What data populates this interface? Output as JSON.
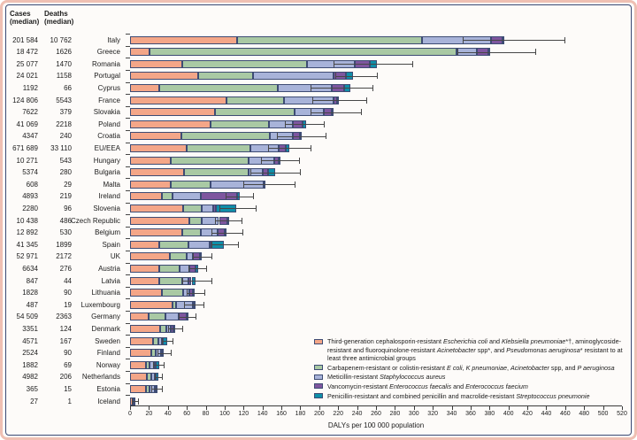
{
  "table": {
    "cases_header": "Cases\n(median)",
    "deaths_header": "Deaths\n(median)"
  },
  "axis": {
    "min": 0,
    "max": 520,
    "step": 20,
    "label": "DALYs per 100 000 population"
  },
  "legend": {
    "items": [
      {
        "key": "cephalosporin-resistant",
        "color": "#f4a688",
        "runs": [
          {
            "t": "Third-generation cephalosporin-resistant "
          },
          {
            "t": "Escherichia coli",
            "i": 1
          },
          {
            "t": " and "
          },
          {
            "t": "Klebsiella pneumoniae",
            "i": 1
          },
          {
            "t": "*†, aminoglycoside-resistant and fluoroquinolone-resistant "
          },
          {
            "t": "Acinetobacter",
            "i": 1
          },
          {
            "t": " spp*, and "
          },
          {
            "t": "Pseudomonas aeruginosa",
            "i": 1
          },
          {
            "t": "* resistant to at least three antimicrobial groups"
          }
        ]
      },
      {
        "key": "carbapenem-resistant",
        "color": "#a9c9a4",
        "runs": [
          {
            "t": "Carbapenem-resistant or colistin-resistant "
          },
          {
            "t": "E coli",
            "i": 1
          },
          {
            "t": ",  "
          },
          {
            "t": "K pneumoniae",
            "i": 1
          },
          {
            "t": ", "
          },
          {
            "t": "Acinetobacter",
            "i": 1
          },
          {
            "t": " spp, and "
          },
          {
            "t": "P aeruginosa",
            "i": 1
          }
        ]
      },
      {
        "key": "mrsa",
        "color": "#a8b3d9",
        "runs": [
          {
            "t": "Meticillin-resistant "
          },
          {
            "t": "Staphylococcus aureus",
            "i": 1
          }
        ]
      },
      {
        "key": "vre",
        "color": "#7e569f",
        "runs": [
          {
            "t": "Vancomycin-resistant "
          },
          {
            "t": "Enterococcus faecalis",
            "i": 1
          },
          {
            "t": " and "
          },
          {
            "t": "Enterococcus faecium",
            "i": 1
          }
        ]
      },
      {
        "key": "pneumococcus",
        "color": "#0f8fa9",
        "runs": [
          {
            "t": "Penicillin-resistant and combined penicillin and macrolide-resistant "
          },
          {
            "t": "Streptococcus pneumonie",
            "i": 1
          }
        ]
      }
    ]
  },
  "chart_data": {
    "type": "bar",
    "orientation": "horizontal-stacked",
    "xlabel": "DALYs per 100 000 population",
    "xlim": [
      0,
      520
    ],
    "grid": false,
    "legend_position": "bottom-right",
    "series": [
      {
        "key": "cephalosporin-resistant",
        "name": "Third-generation cephalosporin-resistant E coli and K pneumoniae, aminoglycoside- and fluoroquinolone-resistant Acinetobacter spp, and P aeruginosa resistant to at least three antimicrobial groups",
        "color": "#f4a688"
      },
      {
        "key": "carbapenem-resistant",
        "name": "Carbapenem-resistant or colistin-resistant E coli, K pneumoniae, Acinetobacter spp, and P aeruginosa",
        "color": "#a9c9a4"
      },
      {
        "key": "mrsa",
        "name": "Meticillin-resistant Staphylococcus aureus",
        "color": "#a8b3d9"
      },
      {
        "key": "vre",
        "name": "Vancomycin-resistant Enterococcus faecalis and Enterococcus faecium",
        "color": "#7e569f"
      },
      {
        "key": "pneumococcus",
        "name": "Penicillin-resistant and combined penicillin and macrolide-resistant Streptococcus pneumonie",
        "color": "#0f8fa9"
      }
    ],
    "rows": [
      {
        "country": "Italy",
        "cases": "201 584",
        "deaths": "10 762",
        "values": [
          113,
          196,
          73,
          12,
          2
        ],
        "ci": [
          352,
          459
        ]
      },
      {
        "country": "Greece",
        "cases": "18 472",
        "deaths": "1626",
        "values": [
          21,
          324,
          22,
          12,
          1
        ],
        "ci": [
          346,
          428
        ]
      },
      {
        "country": "Romania",
        "cases": "25 077",
        "deaths": "1470",
        "values": [
          55,
          132,
          51,
          15,
          8
        ],
        "ci": [
          215,
          298
        ]
      },
      {
        "country": "Portugal",
        "cases": "24 021",
        "deaths": "1158",
        "values": [
          72,
          58,
          85,
          13,
          8
        ],
        "ci": [
          217,
          261
        ]
      },
      {
        "country": "Cyprus",
        "cases": "1192",
        "deaths": "66",
        "values": [
          31,
          125,
          57,
          13,
          7
        ],
        "ci": [
          191,
          256
        ]
      },
      {
        "country": "France",
        "cases": "124 806",
        "deaths": "5543",
        "values": [
          102,
          61,
          52,
          4,
          1
        ],
        "ci": [
          193,
          250
        ]
      },
      {
        "country": "Slovakia",
        "cases": "7622",
        "deaths": "379",
        "values": [
          90,
          84,
          31,
          8,
          2
        ],
        "ci": [
          191,
          244
        ]
      },
      {
        "country": "Poland",
        "cases": "41 069",
        "deaths": "2218",
        "values": [
          85,
          62,
          25,
          10,
          4
        ],
        "ci": [
          164,
          205
        ]
      },
      {
        "country": "Croatia",
        "cases": "4347",
        "deaths": "240",
        "values": [
          54,
          94,
          24,
          8,
          1
        ],
        "ci": [
          155,
          207
        ]
      },
      {
        "country": "EU/EEA",
        "cases": "671 689",
        "deaths": "33 110",
        "values": [
          60,
          67,
          30,
          8,
          3
        ],
        "ci": [
          146,
          191
        ]
      },
      {
        "country": "Hungary",
        "cases": "10 271",
        "deaths": "543",
        "values": [
          43,
          82,
          27,
          5,
          2
        ],
        "ci": [
          138,
          179
        ]
      },
      {
        "country": "Bulgaria",
        "cases": "5374",
        "deaths": "280",
        "values": [
          57,
          68,
          15,
          6,
          7
        ],
        "ci": [
          127,
          180
        ]
      },
      {
        "country": "Malta",
        "cases": "608",
        "deaths": "29",
        "values": [
          43,
          42,
          56,
          1,
          0
        ],
        "ci": [
          120,
          174
        ]
      },
      {
        "country": "Ireland",
        "cases": "4893",
        "deaths": "219",
        "values": [
          34,
          11,
          30,
          38,
          3
        ],
        "ci": [
          101,
          130
        ]
      },
      {
        "country": "Slovenia",
        "cases": "2280",
        "deaths": "96",
        "values": [
          56,
          20,
          12,
          3,
          21
        ],
        "ci": [
          94,
          133
        ]
      },
      {
        "country": "Czech Republic",
        "cases": "10 438",
        "deaths": "486",
        "values": [
          63,
          13,
          18,
          9,
          2
        ],
        "ci": [
          90,
          118
        ]
      },
      {
        "country": "Belgium",
        "cases": "12 892",
        "deaths": "530",
        "values": [
          55,
          20,
          18,
          7,
          2
        ],
        "ci": [
          86,
          119
        ]
      },
      {
        "country": "Spain",
        "cases": "41 345",
        "deaths": "1899",
        "values": [
          31,
          31,
          22,
          2,
          13
        ],
        "ci": [
          86,
          114
        ]
      },
      {
        "country": "UK",
        "cases": "52 971",
        "deaths": "2172",
        "values": [
          42,
          18,
          6,
          8,
          2
        ],
        "ci": [
          66,
          86
        ]
      },
      {
        "country": "Austria",
        "cases": "6634",
        "deaths": "276",
        "values": [
          31,
          21,
          11,
          6,
          3
        ],
        "ci": [
          62,
          80
        ]
      },
      {
        "country": "Latvia",
        "cases": "847",
        "deaths": "44",
        "values": [
          31,
          24,
          7,
          3,
          4
        ],
        "ci": [
          55,
          86
        ]
      },
      {
        "country": "Lithuania",
        "cases": "1828",
        "deaths": "90",
        "values": [
          34,
          22,
          7,
          3,
          2
        ],
        "ci": [
          60,
          79
        ]
      },
      {
        "country": "Luxembourg",
        "cases": "487",
        "deaths": "19",
        "values": [
          45,
          4,
          17,
          1,
          1
        ],
        "ci": [
          57,
          78
        ]
      },
      {
        "country": "Germany",
        "cases": "54 509",
        "deaths": "2363",
        "values": [
          20,
          17,
          14,
          9,
          1
        ],
        "ci": [
          51,
          69
        ]
      },
      {
        "country": "Denmark",
        "cases": "3351",
        "deaths": "124",
        "values": [
          32,
          6,
          5,
          3,
          2
        ],
        "ci": [
          40,
          55
        ]
      },
      {
        "country": "Sweden",
        "cases": "4571",
        "deaths": "167",
        "values": [
          24,
          6,
          4,
          1,
          4
        ],
        "ci": [
          34,
          45
        ]
      },
      {
        "country": "Finland",
        "cases": "2524",
        "deaths": "90",
        "values": [
          22,
          5,
          6,
          1,
          2
        ],
        "ci": [
          29,
          43
        ]
      },
      {
        "country": "Norway",
        "cases": "1882",
        "deaths": "69",
        "values": [
          17,
          4,
          5,
          1,
          4
        ],
        "ci": [
          24,
          36
        ]
      },
      {
        "country": "Netherlands",
        "cases": "4982",
        "deaths": "206",
        "values": [
          18,
          4,
          4,
          1,
          3
        ],
        "ci": [
          26,
          34
        ]
      },
      {
        "country": "Estonia",
        "cases": "365",
        "deaths": "15",
        "values": [
          17,
          4,
          5,
          1,
          2
        ],
        "ci": [
          22,
          34
        ]
      },
      {
        "country": "Iceland",
        "cases": "27",
        "deaths": "1",
        "values": [
          3,
          1,
          0,
          0,
          1
        ],
        "ci": [
          2,
          8
        ]
      }
    ]
  }
}
